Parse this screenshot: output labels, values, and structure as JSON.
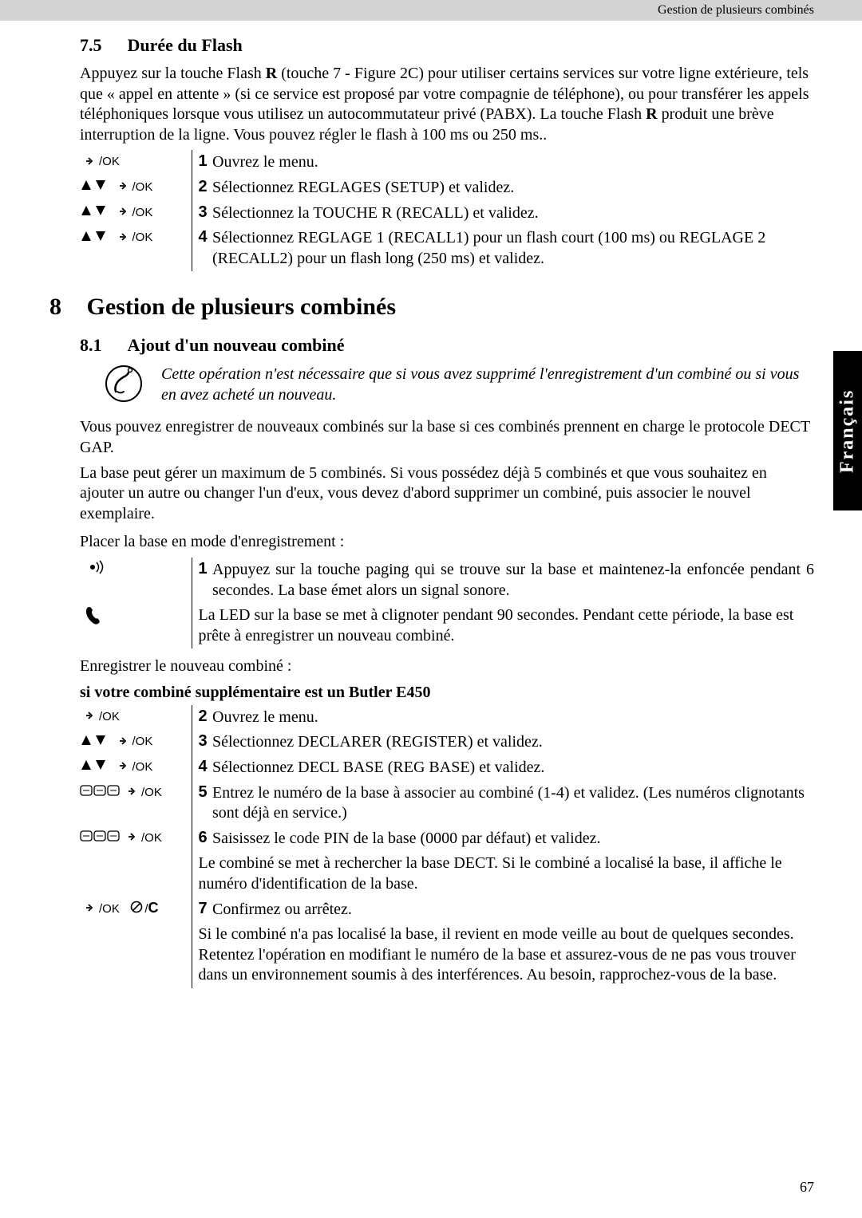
{
  "header_text": "Gestion de plusieurs combinés",
  "side_tab": "Français",
  "sec75": {
    "num": "7.5",
    "title": "Durée du Flash",
    "body": "Appuyez sur la touche Flash <b>R</b> (touche 7 - Figure 2C) pour utiliser certains services sur votre ligne extérieure, tels que « appel en attente » (si ce service est proposé par votre compagnie de téléphone), ou pour transférer les appels téléphoniques lorsque vous utilisez un autocommutateur privé (PABX). La touche Flash <b>R</b> produit une brève interruption de la ligne. Vous pouvez régler le flash à 100 ms ou 250 ms..",
    "steps": [
      {
        "icons": "ok",
        "n": "1",
        "t": "Ouvrez le menu."
      },
      {
        "icons": "arrows_ok",
        "n": "2",
        "t": "Sélectionnez REGLAGES (SETUP) et validez."
      },
      {
        "icons": "arrows_ok",
        "n": "3",
        "t": "Sélectionnez la TOUCHE R (RECALL) et validez."
      },
      {
        "icons": "arrows_ok",
        "n": "4",
        "t": "Sélectionnez REGLAGE 1 (RECALL1) pour un flash court (100 ms) ou REGLAGE 2 (RECALL2) pour un flash long (250 ms) et validez."
      }
    ]
  },
  "sec8": {
    "num": "8",
    "title": "Gestion de plusieurs combinés"
  },
  "sec81": {
    "num": "8.1",
    "title": "Ajout d'un nouveau combiné",
    "note": "Cette opération n'est nécessaire que si vous avez supprimé l'enregistrement d'un combiné ou si vous en avez acheté un nouveau.",
    "p1": "Vous pouvez enregistrer de nouveaux combinés sur la base si ces combinés prennent en charge le protocole DECT GAP.",
    "p2": "La base peut gérer un maximum de 5 combinés. Si vous possédez déjà 5 combinés et que vous souhaitez en ajouter un autre ou changer l'un d'eux, vous devez d'abord supprimer un combiné, puis associer le nouvel exemplaire.",
    "p3": "Placer la base en mode d'enregistrement :",
    "steps_basemode": [
      {
        "icons": "paging",
        "n": "1",
        "t": "Appuyez sur la touche paging qui se trouve sur la base et maintenez-la enfoncée pendant 6 secondes. La base émet alors un signal sonore."
      },
      {
        "icons": "phone",
        "n": "",
        "t": "La LED sur la base se met à clignoter pendant 90 secondes. Pendant cette période, la base est prête à enregistrer un nouveau combiné."
      }
    ],
    "p4": "Enregistrer le nouveau combiné :",
    "subhead": "si votre combiné supplémentaire est un Butler E450",
    "steps_register": [
      {
        "icons": "ok",
        "n": "2",
        "t": "Ouvrez le menu."
      },
      {
        "icons": "arrows_ok",
        "n": "3",
        "t": "Sélectionnez DECLARER (REGISTER) et validez."
      },
      {
        "icons": "arrows_ok",
        "n": "4",
        "t": "Sélectionnez DECL BASE (REG BASE) et validez."
      },
      {
        "icons": "keys_ok",
        "n": "5",
        "t": "Entrez le numéro de la base à associer au combiné (1-4) et validez. (Les numéros clignotants sont déjà en service.)"
      },
      {
        "icons": "keys_ok",
        "n": "6",
        "t": "Saisissez le code PIN de la base (0000 par défaut) et validez."
      },
      {
        "icons": "",
        "n": "",
        "t": "Le combiné se met à rechercher la base DECT. Si le combiné a localisé la base, il affiche le numéro d'identification de la base."
      },
      {
        "icons": "ok_cancel",
        "n": "7",
        "t": "Confirmez ou arrêtez."
      },
      {
        "icons": "",
        "n": "",
        "t": "Si le combiné n'a pas localisé la base, il revient en mode veille au bout de quelques secondes. Retentez l'opération en modifiant le numéro de la base et assurez-vous de ne pas vous trouver dans un environnement soumis à des interférences. Au besoin, rapprochez-vous de la base."
      }
    ]
  },
  "pagenum": "67"
}
